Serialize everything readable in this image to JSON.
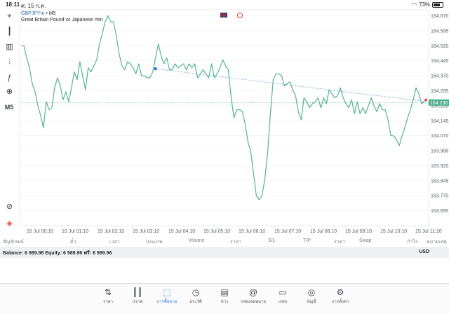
{
  "status_bar": {
    "time": "18:11",
    "date": "ศ. 15 ก.ค.",
    "battery": "73%",
    "wifi_icon": "wifi-icon",
    "battery_icon": "battery-icon"
  },
  "toolbar": {
    "items": [
      {
        "name": "crosshair-icon",
        "glyph": "⌖"
      },
      {
        "name": "candlestick-icon",
        "glyph": "┃"
      },
      {
        "name": "bar-chart-icon",
        "glyph": "▥"
      },
      {
        "name": "indicators-icon",
        "glyph": "⫶"
      },
      {
        "name": "function-icon",
        "glyph": "ƒ"
      },
      {
        "name": "objects-icon",
        "glyph": "⊕"
      }
    ],
    "timeframe": "M5",
    "bottom_items": [
      {
        "name": "zoom-icon",
        "glyph": "⊘"
      },
      {
        "name": "app-logo-icon",
        "glyph": "◈"
      }
    ]
  },
  "chart_header": {
    "symbol": "GBPJPYm",
    "timeframe": "M5",
    "description": "Great Britain Pound vs Japanese Yen"
  },
  "colors": {
    "line": "#56b390",
    "price_line": "#5cb89a",
    "price_badge": "#4caf8a",
    "trend": "#6a9fd6",
    "grid": "#eef0f2",
    "accent": "#2b7bd6"
  },
  "chart_data": {
    "type": "line",
    "title": "",
    "xlabel": "",
    "ylabel": "",
    "ylim": [
      163.62,
      164.7
    ],
    "y_ticks": [
      "164.670",
      "164.595",
      "164.520",
      "164.445",
      "164.370",
      "164.295",
      "164.220",
      "164.145",
      "164.070",
      "163.995",
      "163.920",
      "163.845",
      "163.770",
      "163.695"
    ],
    "x_ticks": [
      "15 Jul 00:10",
      "15 Jul 01:10",
      "15 Jul 02:10",
      "15 Jul 03:10",
      "15 Jul 04:10",
      "15 Jul 05:10",
      "15 Jul 06:10",
      "15 Jul 07:10",
      "15 Jul 08:10",
      "15 Jul 09:10",
      "15 Jul 10:10",
      "15 Jul 11:10"
    ],
    "current_price": "164.236",
    "current_price_value": 164.236,
    "series": [
      {
        "x": [
          0,
          1,
          2,
          3,
          4,
          5,
          6,
          7,
          8,
          9,
          10,
          11,
          12,
          13,
          14,
          15,
          16,
          17,
          18,
          19,
          20,
          21,
          22,
          23,
          24,
          25,
          26,
          27,
          28,
          29,
          30,
          31,
          32,
          33,
          34,
          35,
          36,
          37,
          38,
          39,
          40,
          41,
          42,
          43,
          44,
          45,
          46,
          47,
          48,
          49,
          50,
          51,
          52,
          53,
          54,
          55,
          56,
          57,
          58,
          59,
          60,
          61,
          62,
          63,
          64,
          65,
          66,
          67,
          68,
          69,
          70,
          71,
          72,
          73,
          74,
          75,
          76,
          77,
          78,
          79,
          80,
          81,
          82,
          83,
          84,
          85,
          86,
          87,
          88,
          89,
          90,
          91,
          92,
          93,
          94,
          95,
          96,
          97,
          98,
          99,
          100,
          101,
          102,
          103,
          104,
          105,
          106,
          107,
          108,
          109,
          110,
          111,
          112,
          113,
          114,
          115,
          116,
          117,
          118,
          119,
          120,
          121,
          122,
          123,
          124,
          125,
          126,
          127,
          128,
          129,
          130,
          131,
          132,
          133,
          134,
          135,
          136,
          137,
          138,
          139,
          140,
          141,
          142,
          143,
          144
        ],
        "values": [
          164.52,
          164.52,
          164.46,
          164.41,
          164.33,
          164.29,
          164.22,
          164.17,
          164.11,
          164.24,
          164.2,
          164.21,
          164.31,
          164.36,
          164.32,
          164.25,
          164.29,
          164.24,
          164.31,
          164.39,
          164.35,
          164.44,
          164.37,
          164.3,
          164.41,
          164.39,
          164.42,
          164.45,
          164.53,
          164.58,
          164.64,
          164.67,
          164.64,
          164.64,
          164.57,
          164.48,
          164.42,
          164.4,
          164.44,
          164.43,
          164.41,
          164.38,
          164.43,
          164.37,
          164.37,
          164.36,
          164.36,
          164.39,
          164.46,
          164.53,
          164.47,
          164.43,
          164.46,
          164.4,
          164.4,
          164.43,
          164.41,
          164.42,
          164.43,
          164.4,
          164.43,
          164.41,
          164.43,
          164.36,
          164.38,
          164.4,
          164.38,
          164.36,
          164.43,
          164.36,
          164.38,
          164.41,
          164.45,
          164.42,
          164.4,
          164.26,
          164.16,
          164.2,
          164.2,
          164.19,
          164.13,
          164.04,
          163.99,
          163.88,
          163.77,
          163.75,
          163.77,
          163.85,
          163.98,
          164.18,
          164.35,
          164.38,
          164.38,
          164.37,
          164.32,
          164.33,
          164.34,
          164.3,
          164.27,
          164.19,
          164.15,
          164.26,
          164.24,
          164.21,
          164.23,
          164.24,
          164.26,
          164.21,
          164.26,
          164.23,
          164.3,
          164.28,
          164.26,
          164.27,
          164.31,
          164.26,
          164.23,
          164.21,
          164.25,
          164.18,
          164.24,
          164.18,
          164.21,
          164.18,
          164.22,
          164.26,
          164.22,
          164.19,
          164.23,
          164.2,
          164.2,
          164.15,
          164.07,
          164.07,
          164.05,
          164.02,
          164.07,
          164.11,
          164.16,
          164.2,
          164.25,
          164.31,
          164.28,
          164.23,
          164.24
        ]
      }
    ],
    "trendline": {
      "x1": 48,
      "y1": 164.405,
      "x2": 144,
      "y2": 164.242
    }
  },
  "trade_table": {
    "headers": [
      "สัญลักษณ์",
      "ตั๋ว",
      "เวลา",
      "ประเภท",
      "Volume",
      "ราคา",
      "S/L",
      "T/P",
      "ราคา",
      "Swap",
      "กำไร",
      "หมายเหตุ"
    ]
  },
  "account": {
    "summary": "Balance: 6 989.96 Equity: 6 989.96 ฟรี: 6 989.96",
    "currency": "USD"
  },
  "bottom_nav": [
    {
      "name": "nav-quotes",
      "icon": "quotes-icon",
      "glyph": "⇅",
      "label": "ราคา",
      "active": false
    },
    {
      "name": "nav-charts",
      "icon": "charts-icon",
      "glyph": "┃┃",
      "label": "กราฟ",
      "active": false
    },
    {
      "name": "nav-trade",
      "icon": "trade-icon",
      "glyph": "⬚",
      "label": "การซื้อขาย",
      "active": true
    },
    {
      "name": "nav-history",
      "icon": "history-icon",
      "glyph": "◷",
      "label": "ประวัติ",
      "active": false
    },
    {
      "name": "nav-news",
      "icon": "news-icon",
      "glyph": "▤",
      "label": "ข่าว",
      "active": false
    },
    {
      "name": "nav-mailbox",
      "icon": "mailbox-icon",
      "glyph": "@",
      "label": "กล่องจดหมาย",
      "active": false
    },
    {
      "name": "nav-chat",
      "icon": "chat-icon",
      "glyph": "▭",
      "label": "แชท",
      "active": false
    },
    {
      "name": "nav-account",
      "icon": "account-icon",
      "glyph": "◎",
      "label": "บัญชี",
      "active": false
    },
    {
      "name": "nav-settings",
      "icon": "settings-icon",
      "glyph": "⚙",
      "label": "การตั้งค่า",
      "active": false
    }
  ]
}
